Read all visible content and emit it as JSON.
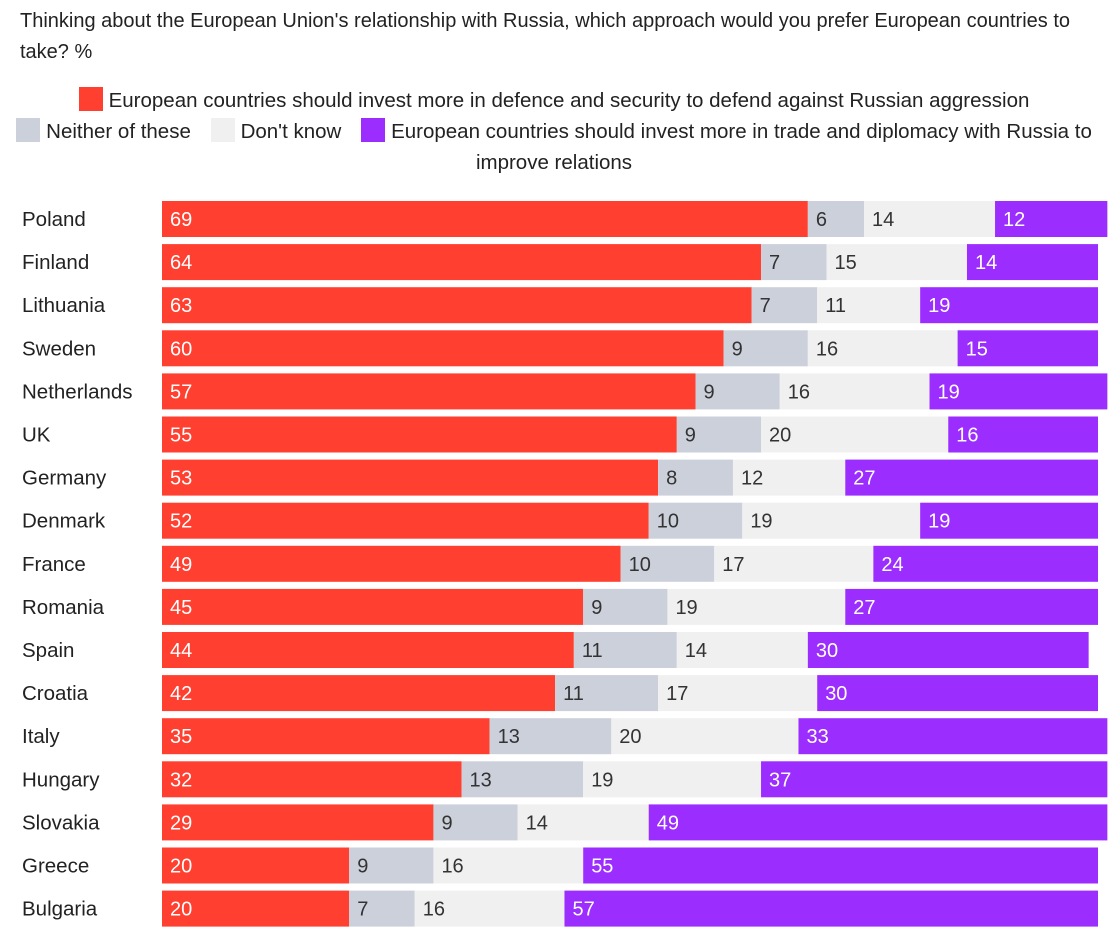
{
  "chart_data": {
    "type": "bar",
    "orientation": "horizontal",
    "stacked": true,
    "title": "Thinking about the European Union's relationship with Russia, which approach would you prefer European countries to take? %",
    "xlim": [
      0,
      100
    ],
    "grid": false,
    "legend_position": "top",
    "categories": [
      "Poland",
      "Finland",
      "Lithuania",
      "Sweden",
      "Netherlands",
      "UK",
      "Germany",
      "Denmark",
      "France",
      "Romania",
      "Spain",
      "Croatia",
      "Italy",
      "Hungary",
      "Slovakia",
      "Greece",
      "Bulgaria"
    ],
    "series": [
      {
        "name": "European countries should invest more in defence and security to defend against Russian aggression",
        "color": "#ff3f2f",
        "label_color": "#ffffff",
        "values": [
          69,
          64,
          63,
          60,
          57,
          55,
          53,
          52,
          49,
          45,
          44,
          42,
          35,
          32,
          29,
          20,
          20
        ]
      },
      {
        "name": "Neither of these",
        "color": "#ccd0db",
        "label_color": "#333333",
        "values": [
          6,
          7,
          7,
          9,
          9,
          9,
          8,
          10,
          10,
          9,
          11,
          11,
          13,
          13,
          9,
          9,
          7
        ]
      },
      {
        "name": "Don't know",
        "color": "#f0f0f0",
        "label_color": "#333333",
        "values": [
          14,
          15,
          11,
          16,
          16,
          20,
          12,
          19,
          17,
          19,
          14,
          17,
          20,
          19,
          14,
          16,
          16
        ]
      },
      {
        "name": "European countries should invest more in trade and diplomacy with Russia to improve relations",
        "color": "#9b2dff",
        "label_color": "#ffffff",
        "values": [
          12,
          14,
          19,
          15,
          19,
          16,
          27,
          19,
          24,
          27,
          30,
          30,
          33,
          37,
          49,
          55,
          57
        ]
      }
    ]
  }
}
